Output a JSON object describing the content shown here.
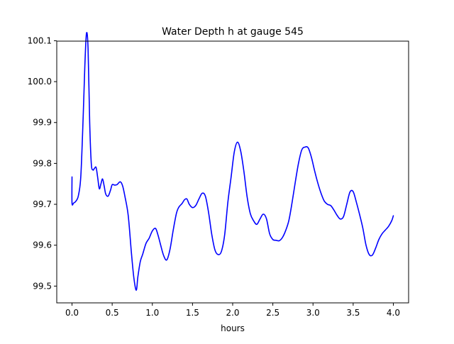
{
  "chart_data": {
    "type": "line",
    "title": "Water Depth h at gauge 545",
    "xlabel": "hours",
    "ylabel": "",
    "xlim": [
      -0.19,
      4.19
    ],
    "ylim": [
      99.459,
      100.099
    ],
    "xticks": [
      0.0,
      0.5,
      1.0,
      1.5,
      2.0,
      2.5,
      3.0,
      3.5,
      4.0
    ],
    "xtick_labels": [
      "0.0",
      "0.5",
      "1.0",
      "1.5",
      "2.0",
      "2.5",
      "3.0",
      "3.5",
      "4.0"
    ],
    "yticks": [
      99.5,
      99.6,
      99.7,
      99.8,
      99.9,
      100.0,
      100.1
    ],
    "ytick_labels": [
      "99.5",
      "99.6",
      "99.7",
      "99.8",
      "99.9",
      "100.0",
      "100.1"
    ],
    "grid": false,
    "series": [
      {
        "color": "#0000ff",
        "x": [
          0.0,
          0.0,
          0.02,
          0.05,
          0.08,
          0.11,
          0.14,
          0.16,
          0.18,
          0.2,
          0.22,
          0.24,
          0.26,
          0.28,
          0.3,
          0.32,
          0.34,
          0.36,
          0.38,
          0.4,
          0.42,
          0.45,
          0.48,
          0.5,
          0.53,
          0.56,
          0.6,
          0.63,
          0.66,
          0.7,
          0.74,
          0.77,
          0.8,
          0.82,
          0.85,
          0.88,
          0.92,
          0.96,
          1.0,
          1.04,
          1.07,
          1.1,
          1.14,
          1.18,
          1.22,
          1.26,
          1.3,
          1.33,
          1.37,
          1.4,
          1.43,
          1.46,
          1.5,
          1.54,
          1.58,
          1.62,
          1.66,
          1.7,
          1.74,
          1.78,
          1.82,
          1.86,
          1.9,
          1.94,
          1.98,
          2.02,
          2.06,
          2.1,
          2.14,
          2.18,
          2.22,
          2.26,
          2.3,
          2.34,
          2.38,
          2.42,
          2.46,
          2.5,
          2.54,
          2.58,
          2.62,
          2.66,
          2.7,
          2.74,
          2.78,
          2.82,
          2.86,
          2.9,
          2.94,
          2.98,
          3.02,
          3.06,
          3.1,
          3.14,
          3.18,
          3.22,
          3.26,
          3.3,
          3.34,
          3.38,
          3.42,
          3.46,
          3.5,
          3.54,
          3.58,
          3.62,
          3.66,
          3.7,
          3.74,
          3.78,
          3.82,
          3.86,
          3.9,
          3.94,
          3.98,
          4.0
        ],
        "y": [
          99.767,
          99.703,
          99.703,
          99.708,
          99.722,
          99.77,
          99.92,
          100.04,
          100.118,
          100.08,
          99.9,
          99.8,
          99.784,
          99.788,
          99.79,
          99.765,
          99.738,
          99.75,
          99.762,
          99.745,
          99.725,
          99.72,
          99.735,
          99.748,
          99.747,
          99.748,
          99.755,
          99.745,
          99.718,
          99.672,
          99.58,
          99.52,
          99.49,
          99.523,
          99.56,
          99.578,
          99.604,
          99.617,
          99.635,
          99.641,
          99.625,
          99.603,
          99.575,
          99.564,
          99.59,
          99.637,
          99.678,
          99.693,
          99.702,
          99.711,
          99.713,
          99.7,
          99.692,
          99.697,
          99.713,
          99.727,
          99.72,
          99.68,
          99.626,
          99.588,
          99.577,
          99.585,
          99.625,
          99.705,
          99.766,
          99.828,
          99.852,
          99.83,
          99.78,
          99.718,
          99.677,
          99.66,
          99.651,
          99.664,
          99.676,
          99.665,
          99.628,
          99.614,
          99.612,
          99.611,
          99.619,
          99.636,
          99.661,
          99.705,
          99.755,
          99.801,
          99.833,
          99.84,
          99.838,
          99.815,
          99.782,
          99.752,
          99.727,
          99.708,
          99.7,
          99.697,
          99.686,
          99.673,
          99.664,
          99.67,
          99.7,
          99.73,
          99.731,
          99.705,
          99.675,
          99.642,
          99.6,
          99.577,
          99.576,
          99.593,
          99.614,
          99.628,
          99.637,
          99.646,
          99.66,
          99.672
        ]
      }
    ]
  }
}
